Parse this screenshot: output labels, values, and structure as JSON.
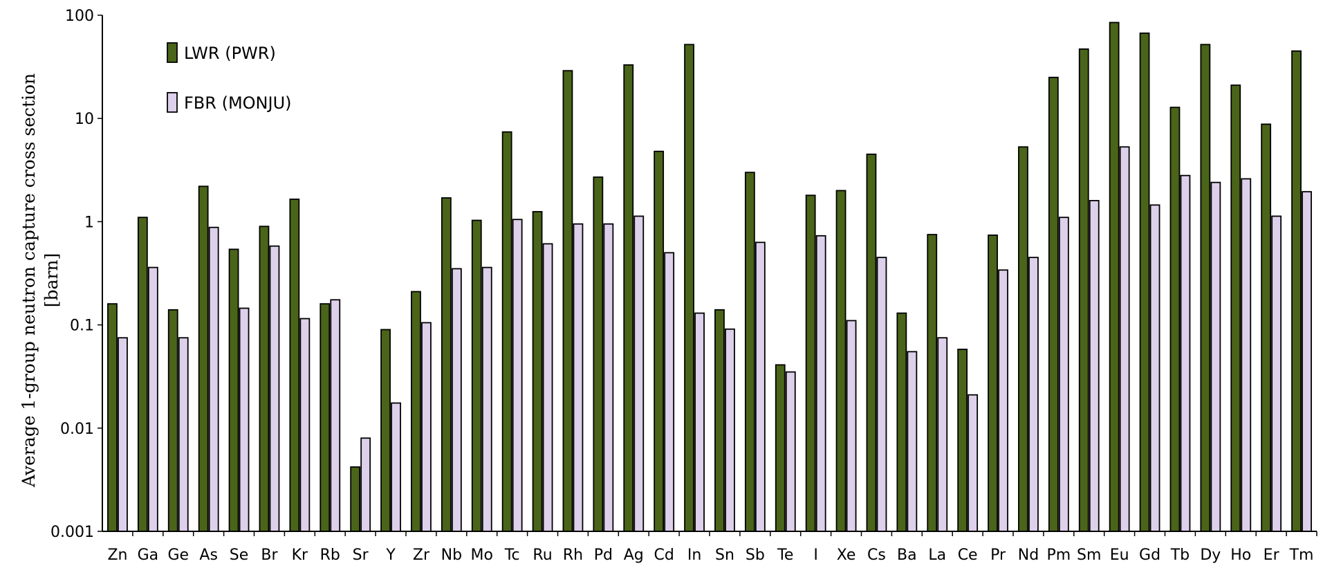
{
  "chart_data": {
    "type": "bar",
    "scale": "log",
    "ylim": [
      0.001,
      100
    ],
    "yticks": [
      "0.001",
      "0.01",
      "0.1",
      "1",
      "10",
      "100"
    ],
    "ylabel_line1": "Average 1-group neutron capture cross section",
    "ylabel_line2": "[barn]",
    "xlabel": "",
    "legend_position": "top-left",
    "grid": false,
    "categories": [
      "Zn",
      "Ga",
      "Ge",
      "As",
      "Se",
      "Br",
      "Kr",
      "Rb",
      "Sr",
      "Y",
      "Zr",
      "Nb",
      "Mo",
      "Tc",
      "Ru",
      "Rh",
      "Pd",
      "Ag",
      "Cd",
      "In",
      "Sn",
      "Sb",
      "Te",
      "I",
      "Xe",
      "Cs",
      "Ba",
      "La",
      "Ce",
      "Pr",
      "Nd",
      "Pm",
      "Sm",
      "Eu",
      "Gd",
      "Tb",
      "Dy",
      "Ho",
      "Er",
      "Tm"
    ],
    "series": [
      {
        "name": "LWR (PWR)",
        "color": "#4a6419",
        "values": [
          0.16,
          1.1,
          0.14,
          2.2,
          0.54,
          0.9,
          1.65,
          0.16,
          0.0042,
          0.09,
          0.21,
          1.7,
          1.03,
          7.4,
          1.25,
          29,
          2.7,
          33,
          4.8,
          52,
          0.14,
          3.0,
          0.041,
          1.8,
          2.0,
          4.5,
          0.13,
          0.75,
          0.058,
          0.74,
          5.3,
          25,
          47,
          85,
          67,
          12.8,
          52,
          21,
          8.8,
          45
        ]
      },
      {
        "name": "FBR (MONJU)",
        "color": "#dcd0ea",
        "values": [
          0.075,
          0.36,
          0.075,
          0.88,
          0.145,
          0.58,
          0.115,
          0.175,
          0.008,
          0.0175,
          0.105,
          0.35,
          0.36,
          1.05,
          0.61,
          0.95,
          0.95,
          1.13,
          0.5,
          0.13,
          0.091,
          0.63,
          0.035,
          0.73,
          0.11,
          0.45,
          0.055,
          0.075,
          0.021,
          0.34,
          0.45,
          1.1,
          1.6,
          5.3,
          1.45,
          2.8,
          2.4,
          2.6,
          1.13,
          1.95
        ]
      }
    ]
  }
}
